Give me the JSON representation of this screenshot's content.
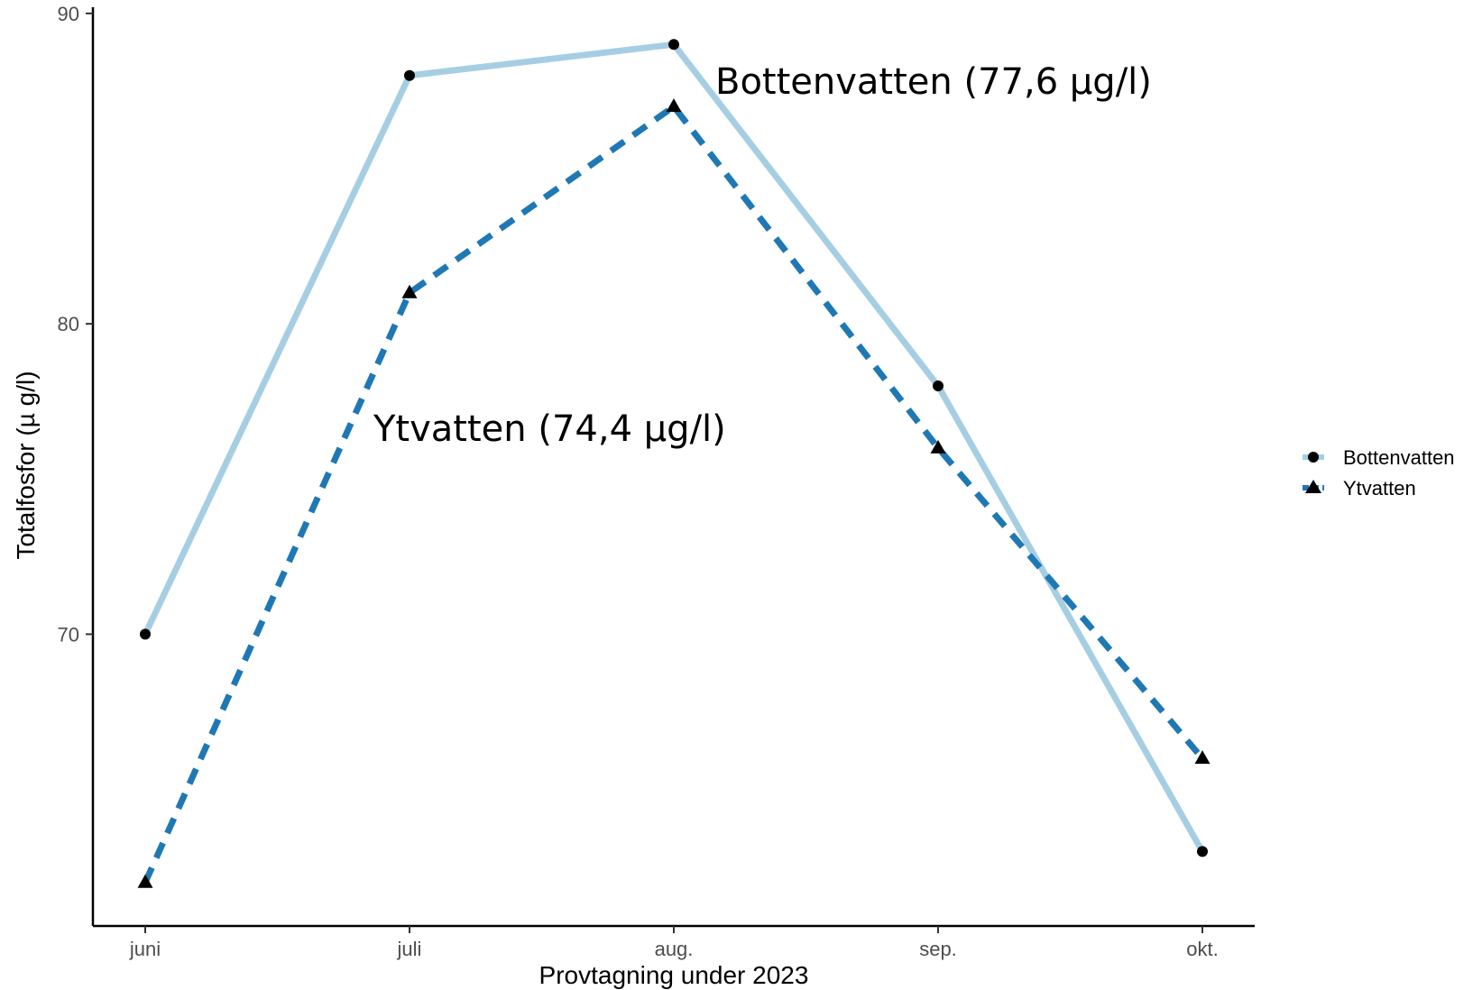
{
  "chart_data": {
    "type": "line",
    "categories": [
      "juni",
      "juli",
      "aug.",
      "sep.",
      "okt."
    ],
    "series": [
      {
        "name": "Bottenvatten",
        "values": [
          70,
          88,
          89,
          78,
          63
        ],
        "color": "#a6cee3",
        "line_style": "solid",
        "marker": "circle"
      },
      {
        "name": "Ytvatten",
        "values": [
          62,
          81,
          87,
          76,
          66
        ],
        "color": "#1f78b4",
        "line_style": "dashed",
        "marker": "triangle"
      }
    ],
    "xlabel": "Provtagning under 2023",
    "ylabel": "Totalfosfor (µ g/l)",
    "ylim": [
      60.6,
      90.2
    ],
    "yticks": [
      70,
      80,
      90
    ],
    "grid": false,
    "legend_position": "right",
    "annotations": [
      {
        "text": "Bottenvatten (77,6 µg/l)",
        "series": "Bottenvatten"
      },
      {
        "text": "Ytvatten (74,4 µg/l)",
        "series": "Ytvatten"
      }
    ]
  }
}
